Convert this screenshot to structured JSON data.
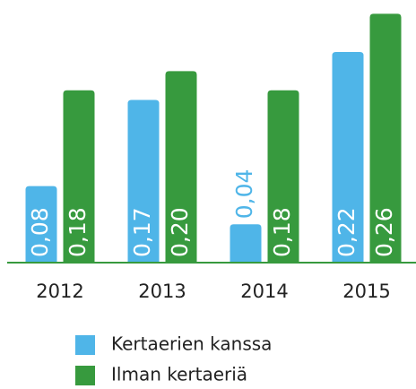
{
  "chart_data": {
    "type": "bar",
    "categories": [
      "2012",
      "2013",
      "2014",
      "2015"
    ],
    "series": [
      {
        "name": "Kertaerien kanssa",
        "color": "#4fb5e8",
        "values": [
          0.08,
          0.17,
          0.04,
          0.22
        ],
        "value_labels": [
          "0,08",
          "0,17",
          "0,04",
          "0,22"
        ]
      },
      {
        "name": "Ilman kertaeriä",
        "color": "#379a3e",
        "values": [
          0.18,
          0.2,
          0.18,
          0.26
        ],
        "value_labels": [
          "0,18",
          "0,20",
          "0,18",
          "0,26"
        ]
      }
    ],
    "ylim": [
      0,
      0.265
    ],
    "legend": "bottom"
  }
}
